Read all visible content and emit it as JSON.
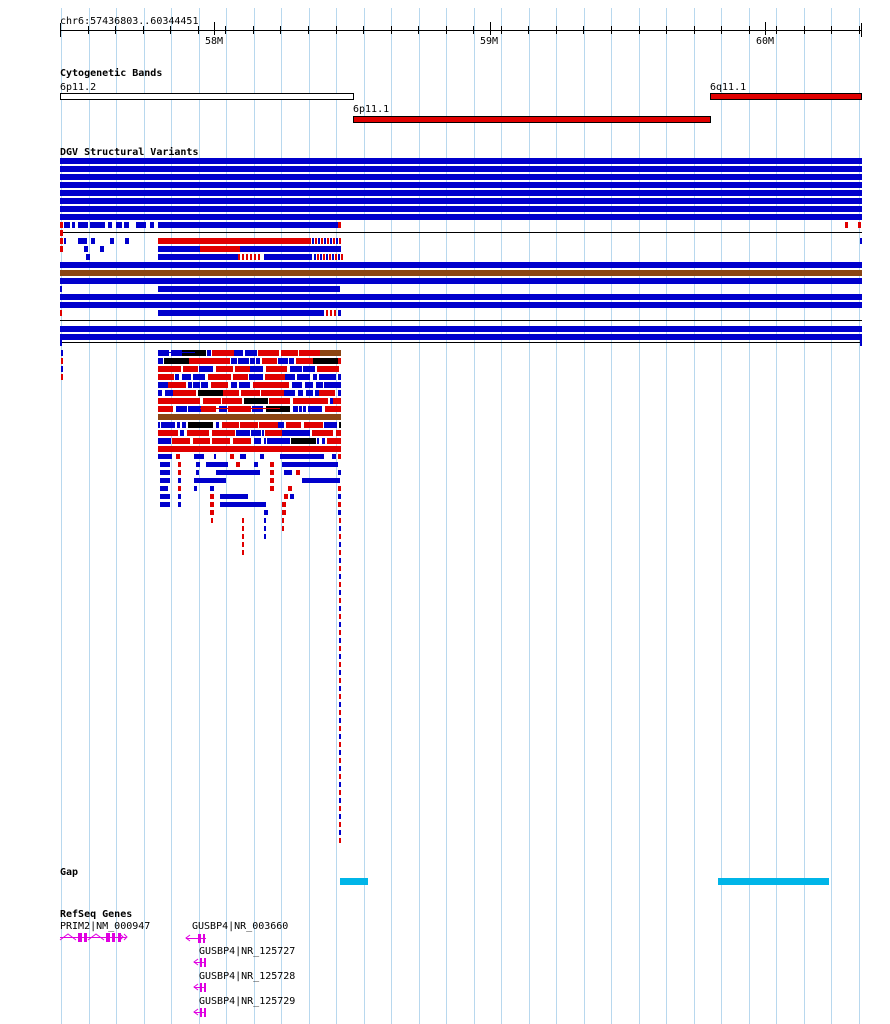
{
  "ruler": {
    "location": "chr6:57436803..60344451",
    "ticks": [
      "58M",
      "59M",
      "60M"
    ]
  },
  "tracks": {
    "cytoband": {
      "title": "Cytogenetic Bands",
      "bands": [
        {
          "label": "6p11.2",
          "color": "#ffffff"
        },
        {
          "label": "6p11.1",
          "color": "#e00000"
        },
        {
          "label": "6q11.1",
          "color": "#e00000"
        }
      ]
    },
    "dgv": {
      "title": "DGV Structural Variants",
      "colors": {
        "loss": "#0000cc",
        "gain": "#e00000",
        "both": "#8b4513"
      }
    },
    "gap": {
      "title": "Gap",
      "color": "#00b5e8"
    },
    "refseq": {
      "title": "RefSeq Genes",
      "color": "#e000e0",
      "genes": [
        {
          "label": "PRIM2|NM_000947"
        },
        {
          "label": "GUSBP4|NR_003660"
        },
        {
          "label": "GUSBP4|NR_125727"
        },
        {
          "label": "GUSBP4|NR_125728"
        },
        {
          "label": "GUSBP4|NR_125729"
        }
      ]
    }
  }
}
